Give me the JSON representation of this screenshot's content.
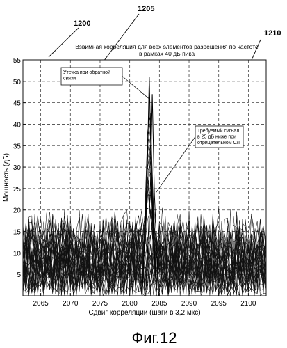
{
  "reference_numerals": {
    "figure": "1200",
    "leakage": "1205",
    "signal": "1210"
  },
  "figure_caption": "Фиг.12",
  "chart_data": {
    "type": "line",
    "title_line1": "Взвимная корреляция для всех элементов разрешения по частоте",
    "title_line2": "в рамках 40 дБ пика",
    "xlabel": "Сдвиг корреляции (шаги в 3,2 мкс)",
    "ylabel": "Мощность (дБ)",
    "xlim": [
      2062,
      2103
    ],
    "ylim": [
      0,
      55
    ],
    "xticks": [
      2065,
      2070,
      2075,
      2080,
      2085,
      2090,
      2095,
      2100
    ],
    "yticks": [
      5,
      10,
      15,
      20,
      25,
      30,
      35,
      40,
      45,
      50,
      55
    ],
    "grid": "dashed",
    "noise_floor_range": [
      0,
      21
    ],
    "peak": {
      "x": 2083.3,
      "y": 51
    },
    "secondary_peak": {
      "x": 2083.8,
      "y": 47
    },
    "annotations": [
      {
        "line1": "Утечка при обратной",
        "line2": "связи",
        "line3": "",
        "target_x": 2083.2,
        "target_y": 46
      },
      {
        "line1": "Требуемый сигнал",
        "line2": "в 25 дБ ниже при",
        "line3": "отрицательном СЛ",
        "target_x": 2084.4,
        "target_y": 24
      }
    ]
  }
}
